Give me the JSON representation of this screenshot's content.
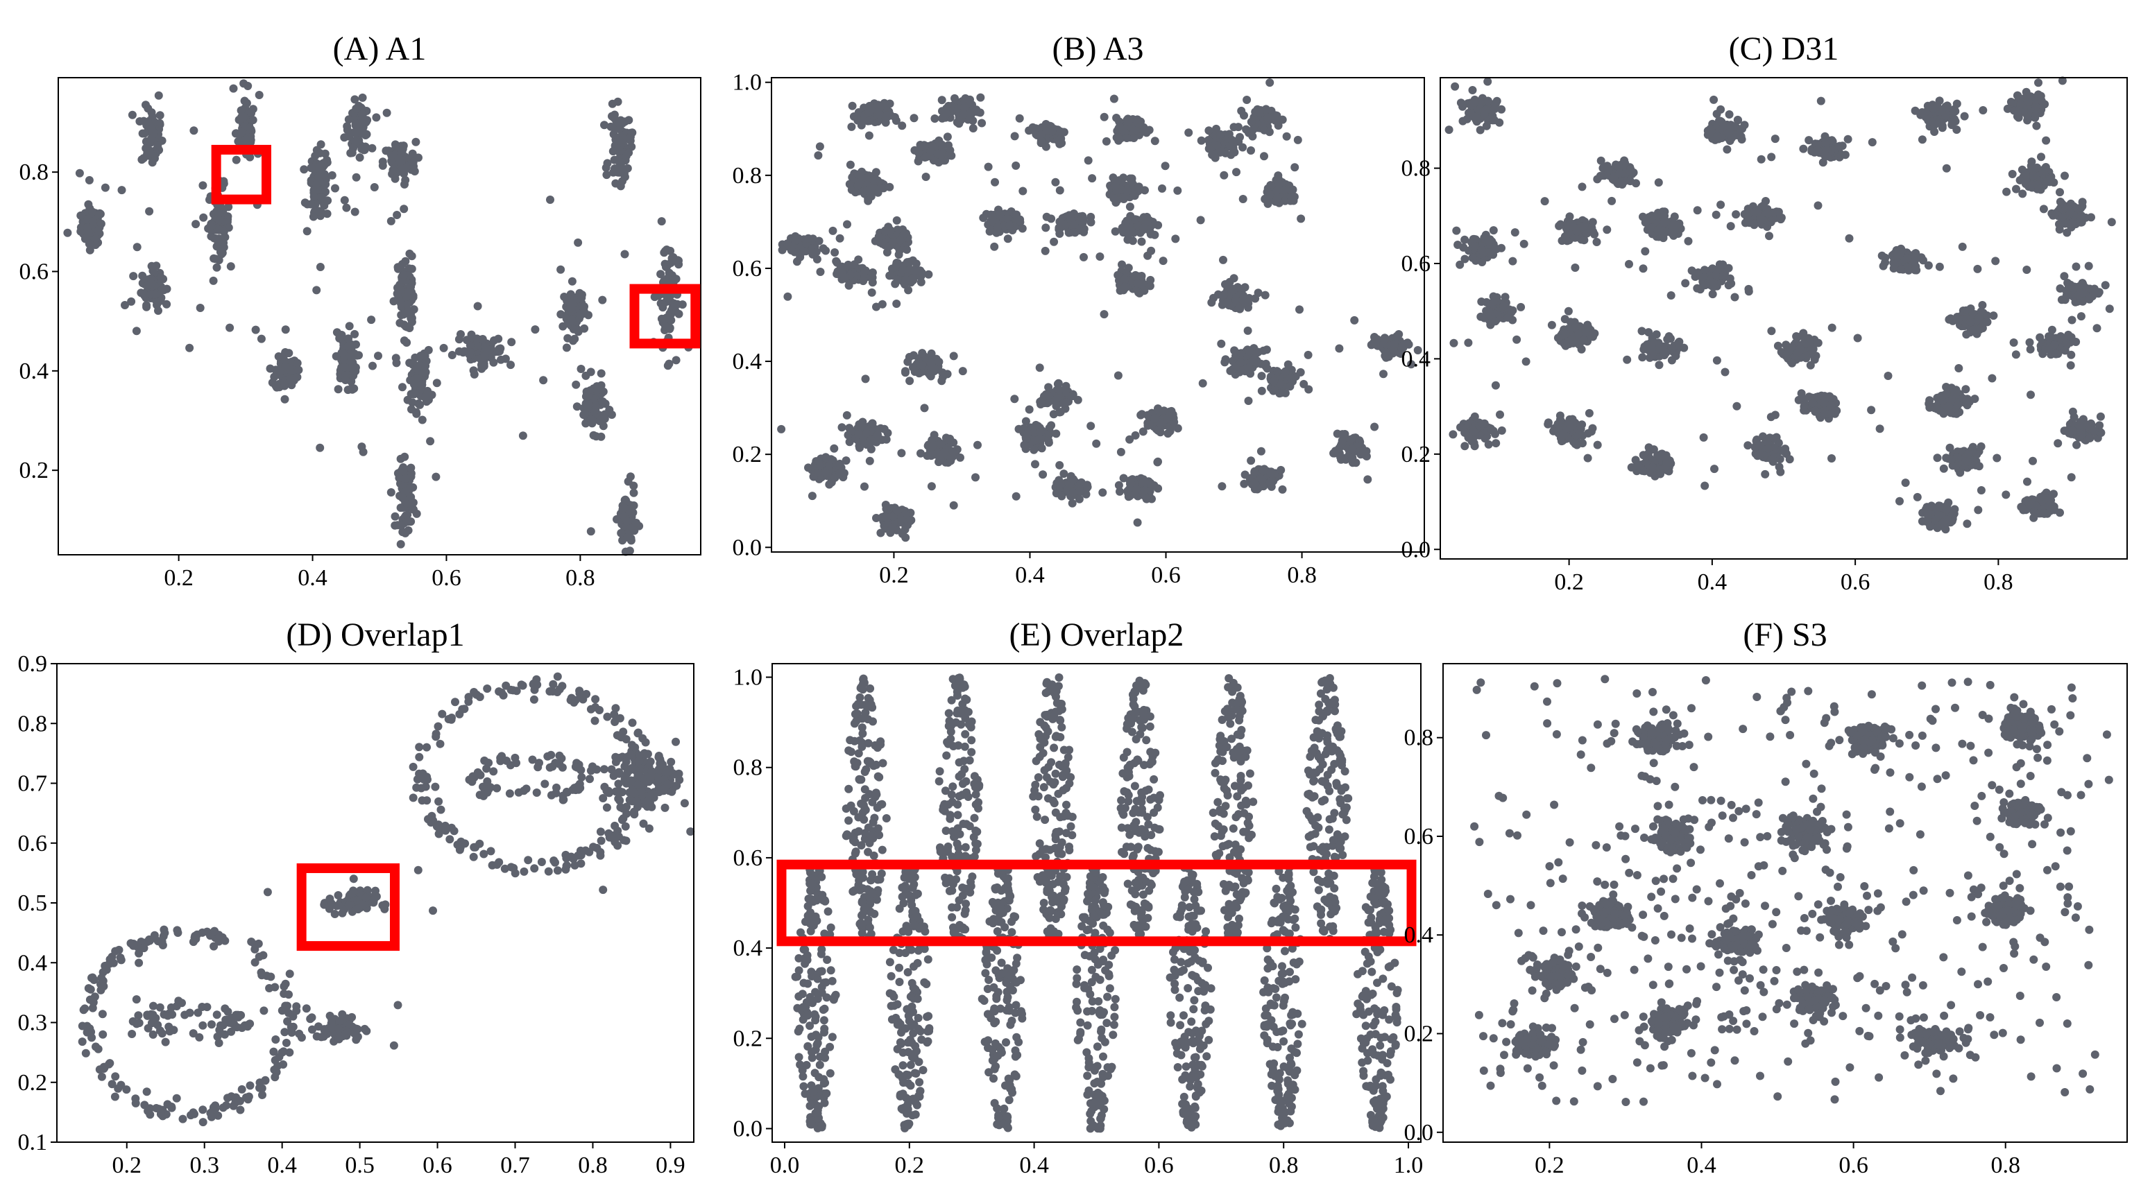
{
  "colors": {
    "points": "#5e626d",
    "highlight": "#ff0000",
    "axes": "#000000"
  },
  "chart_data": [
    {
      "type": "scatter",
      "title": "(A) A1",
      "xlim": [
        0.02,
        0.98
      ],
      "ylim": [
        0.03,
        0.99
      ],
      "xticks": [
        "0.2",
        "0.4",
        "0.6",
        "0.8"
      ],
      "yticks": [
        "0.2",
        "0.4",
        "0.6",
        "0.8"
      ],
      "clusters": [
        {
          "x": 0.07,
          "y": 0.69,
          "sx": 0.008,
          "sy": 0.018
        },
        {
          "x": 0.16,
          "y": 0.87,
          "sx": 0.008,
          "sy": 0.03
        },
        {
          "x": 0.16,
          "y": 0.57,
          "sx": 0.008,
          "sy": 0.018
        },
        {
          "x": 0.26,
          "y": 0.7,
          "sx": 0.008,
          "sy": 0.035
        },
        {
          "x": 0.3,
          "y": 0.88,
          "sx": 0.007,
          "sy": 0.03
        },
        {
          "x": 0.41,
          "y": 0.77,
          "sx": 0.008,
          "sy": 0.035
        },
        {
          "x": 0.47,
          "y": 0.89,
          "sx": 0.008,
          "sy": 0.025
        },
        {
          "x": 0.53,
          "y": 0.82,
          "sx": 0.012,
          "sy": 0.02
        },
        {
          "x": 0.36,
          "y": 0.4,
          "sx": 0.008,
          "sy": 0.02
        },
        {
          "x": 0.45,
          "y": 0.42,
          "sx": 0.008,
          "sy": 0.03
        },
        {
          "x": 0.54,
          "y": 0.55,
          "sx": 0.006,
          "sy": 0.04
        },
        {
          "x": 0.56,
          "y": 0.38,
          "sx": 0.008,
          "sy": 0.03
        },
        {
          "x": 0.65,
          "y": 0.44,
          "sx": 0.018,
          "sy": 0.015
        },
        {
          "x": 0.54,
          "y": 0.15,
          "sx": 0.006,
          "sy": 0.035
        },
        {
          "x": 0.79,
          "y": 0.52,
          "sx": 0.008,
          "sy": 0.025
        },
        {
          "x": 0.82,
          "y": 0.33,
          "sx": 0.01,
          "sy": 0.025
        },
        {
          "x": 0.87,
          "y": 0.1,
          "sx": 0.006,
          "sy": 0.03
        },
        {
          "x": 0.86,
          "y": 0.85,
          "sx": 0.008,
          "sy": 0.035
        },
        {
          "x": 0.93,
          "y": 0.55,
          "sx": 0.008,
          "sy": 0.06
        }
      ],
      "highlights": [
        {
          "x0": 0.256,
          "y0": 0.745,
          "x1": 0.331,
          "y1": 0.845
        },
        {
          "x0": 0.881,
          "y0": 0.455,
          "x1": 0.972,
          "y1": 0.565
        }
      ]
    },
    {
      "type": "scatter",
      "title": "(B) A3",
      "xlim": [
        0.02,
        0.98
      ],
      "ylim": [
        -0.01,
        1.01
      ],
      "xticks": [
        "0.2",
        "0.4",
        "0.6",
        "0.8"
      ],
      "yticks": [
        "0.0",
        "0.2",
        "0.4",
        "0.6",
        "0.8",
        "1.0"
      ],
      "clusters": [
        {
          "x": 0.17,
          "y": 0.93
        },
        {
          "x": 0.3,
          "y": 0.94
        },
        {
          "x": 0.43,
          "y": 0.89
        },
        {
          "x": 0.55,
          "y": 0.9
        },
        {
          "x": 0.68,
          "y": 0.87
        },
        {
          "x": 0.74,
          "y": 0.92
        },
        {
          "x": 0.26,
          "y": 0.85
        },
        {
          "x": 0.16,
          "y": 0.78
        },
        {
          "x": 0.06,
          "y": 0.65
        },
        {
          "x": 0.2,
          "y": 0.66
        },
        {
          "x": 0.14,
          "y": 0.59
        },
        {
          "x": 0.22,
          "y": 0.59
        },
        {
          "x": 0.36,
          "y": 0.7
        },
        {
          "x": 0.46,
          "y": 0.7
        },
        {
          "x": 0.54,
          "y": 0.77
        },
        {
          "x": 0.56,
          "y": 0.69
        },
        {
          "x": 0.77,
          "y": 0.76
        },
        {
          "x": 0.55,
          "y": 0.57
        },
        {
          "x": 0.7,
          "y": 0.54
        },
        {
          "x": 0.72,
          "y": 0.4
        },
        {
          "x": 0.77,
          "y": 0.36
        },
        {
          "x": 0.93,
          "y": 0.43
        },
        {
          "x": 0.25,
          "y": 0.39
        },
        {
          "x": 0.44,
          "y": 0.32
        },
        {
          "x": 0.59,
          "y": 0.27
        },
        {
          "x": 0.16,
          "y": 0.24
        },
        {
          "x": 0.27,
          "y": 0.21
        },
        {
          "x": 0.41,
          "y": 0.24
        },
        {
          "x": 0.1,
          "y": 0.17
        },
        {
          "x": 0.46,
          "y": 0.13
        },
        {
          "x": 0.56,
          "y": 0.13
        },
        {
          "x": 0.74,
          "y": 0.15
        },
        {
          "x": 0.87,
          "y": 0.21
        },
        {
          "x": 0.2,
          "y": 0.06
        }
      ],
      "highlights": []
    },
    {
      "type": "scatter",
      "title": "(C) D31",
      "xlim": [
        0.02,
        0.98
      ],
      "ylim": [
        -0.02,
        0.99
      ],
      "xticks": [
        "0.2",
        "0.4",
        "0.6",
        "0.8"
      ],
      "yticks": [
        "0.0",
        "0.2",
        "0.4",
        "0.6",
        "0.8"
      ],
      "clusters": [
        {
          "x": 0.08,
          "y": 0.92
        },
        {
          "x": 0.27,
          "y": 0.79
        },
        {
          "x": 0.42,
          "y": 0.88
        },
        {
          "x": 0.56,
          "y": 0.84
        },
        {
          "x": 0.72,
          "y": 0.91
        },
        {
          "x": 0.84,
          "y": 0.93
        },
        {
          "x": 0.85,
          "y": 0.78
        },
        {
          "x": 0.08,
          "y": 0.63
        },
        {
          "x": 0.21,
          "y": 0.67
        },
        {
          "x": 0.33,
          "y": 0.68
        },
        {
          "x": 0.47,
          "y": 0.7
        },
        {
          "x": 0.9,
          "y": 0.7
        },
        {
          "x": 0.1,
          "y": 0.5
        },
        {
          "x": 0.4,
          "y": 0.57
        },
        {
          "x": 0.67,
          "y": 0.61
        },
        {
          "x": 0.91,
          "y": 0.54
        },
        {
          "x": 0.21,
          "y": 0.45
        },
        {
          "x": 0.33,
          "y": 0.42
        },
        {
          "x": 0.52,
          "y": 0.42
        },
        {
          "x": 0.76,
          "y": 0.48
        },
        {
          "x": 0.88,
          "y": 0.43
        },
        {
          "x": 0.07,
          "y": 0.25
        },
        {
          "x": 0.2,
          "y": 0.25
        },
        {
          "x": 0.55,
          "y": 0.3
        },
        {
          "x": 0.73,
          "y": 0.31
        },
        {
          "x": 0.92,
          "y": 0.25
        },
        {
          "x": 0.32,
          "y": 0.18
        },
        {
          "x": 0.48,
          "y": 0.21
        },
        {
          "x": 0.75,
          "y": 0.19
        },
        {
          "x": 0.72,
          "y": 0.07
        },
        {
          "x": 0.86,
          "y": 0.09
        }
      ],
      "highlights": []
    },
    {
      "type": "scatter",
      "title": "(D) Overlap1",
      "xlim": [
        0.11,
        0.93
      ],
      "ylim": [
        0.1,
        0.9
      ],
      "xticks": [
        "0.2",
        "0.3",
        "0.4",
        "0.5",
        "0.6",
        "0.7",
        "0.8",
        "0.9"
      ],
      "yticks": [
        "0.1",
        "0.2",
        "0.3",
        "0.4",
        "0.5",
        "0.6",
        "0.7",
        "0.8",
        "0.9"
      ],
      "rings": [
        {
          "cx": 0.28,
          "cy": 0.3,
          "rx": 0.13,
          "ry": 0.15
        },
        {
          "cx": 0.28,
          "cy": 0.3,
          "rx": 0.06,
          "ry": 0.02
        },
        {
          "cx": 0.72,
          "cy": 0.71,
          "rx": 0.14,
          "ry": 0.15
        },
        {
          "cx": 0.72,
          "cy": 0.71,
          "rx": 0.07,
          "ry": 0.03
        }
      ],
      "clusters": [
        {
          "x": 0.49,
          "y": 0.5,
          "sx": 0.015,
          "sy": 0.01
        },
        {
          "x": 0.475,
          "y": 0.29,
          "sx": 0.015,
          "sy": 0.01
        },
        {
          "x": 0.85,
          "y": 0.7,
          "sx": 0.02,
          "sy": 0.04
        },
        {
          "x": 0.89,
          "y": 0.71,
          "sx": 0.01,
          "sy": 0.02
        }
      ],
      "highlights": [
        {
          "x0": 0.425,
          "y0": 0.428,
          "x1": 0.545,
          "y1": 0.558
        }
      ]
    },
    {
      "type": "scatter",
      "title": "(E) Overlap2",
      "xlim": [
        -0.02,
        1.02
      ],
      "ylim": [
        -0.03,
        1.03
      ],
      "xticks": [
        "0.0",
        "0.2",
        "0.4",
        "0.6",
        "0.8",
        "1.0"
      ],
      "yticks": [
        "0.0",
        "0.2",
        "0.4",
        "0.6",
        "0.8",
        "1.0"
      ],
      "columns_upper": [
        0.13,
        0.28,
        0.43,
        0.57,
        0.72,
        0.87
      ],
      "columns_lower": [
        0.05,
        0.2,
        0.35,
        0.5,
        0.65,
        0.8,
        0.95
      ],
      "highlights": [
        {
          "x0": -0.005,
          "y0": 0.415,
          "x1": 1.005,
          "y1": 0.585
        }
      ]
    },
    {
      "type": "scatter",
      "title": "(F) S3",
      "xlim": [
        0.06,
        0.96
      ],
      "ylim": [
        -0.02,
        0.95
      ],
      "xticks": [
        "0.2",
        "0.4",
        "0.6",
        "0.8"
      ],
      "yticks": [
        "0.0",
        "0.2",
        "0.4",
        "0.6",
        "0.8"
      ],
      "clusters": [
        {
          "x": 0.34,
          "y": 0.8
        },
        {
          "x": 0.62,
          "y": 0.8
        },
        {
          "x": 0.82,
          "y": 0.82
        },
        {
          "x": 0.82,
          "y": 0.65
        },
        {
          "x": 0.36,
          "y": 0.6
        },
        {
          "x": 0.54,
          "y": 0.61
        },
        {
          "x": 0.45,
          "y": 0.39
        },
        {
          "x": 0.59,
          "y": 0.43
        },
        {
          "x": 0.8,
          "y": 0.45
        },
        {
          "x": 0.21,
          "y": 0.32
        },
        {
          "x": 0.28,
          "y": 0.44
        },
        {
          "x": 0.18,
          "y": 0.18
        },
        {
          "x": 0.36,
          "y": 0.22
        },
        {
          "x": 0.55,
          "y": 0.27
        },
        {
          "x": 0.7,
          "y": 0.19
        }
      ],
      "highlights": []
    }
  ]
}
